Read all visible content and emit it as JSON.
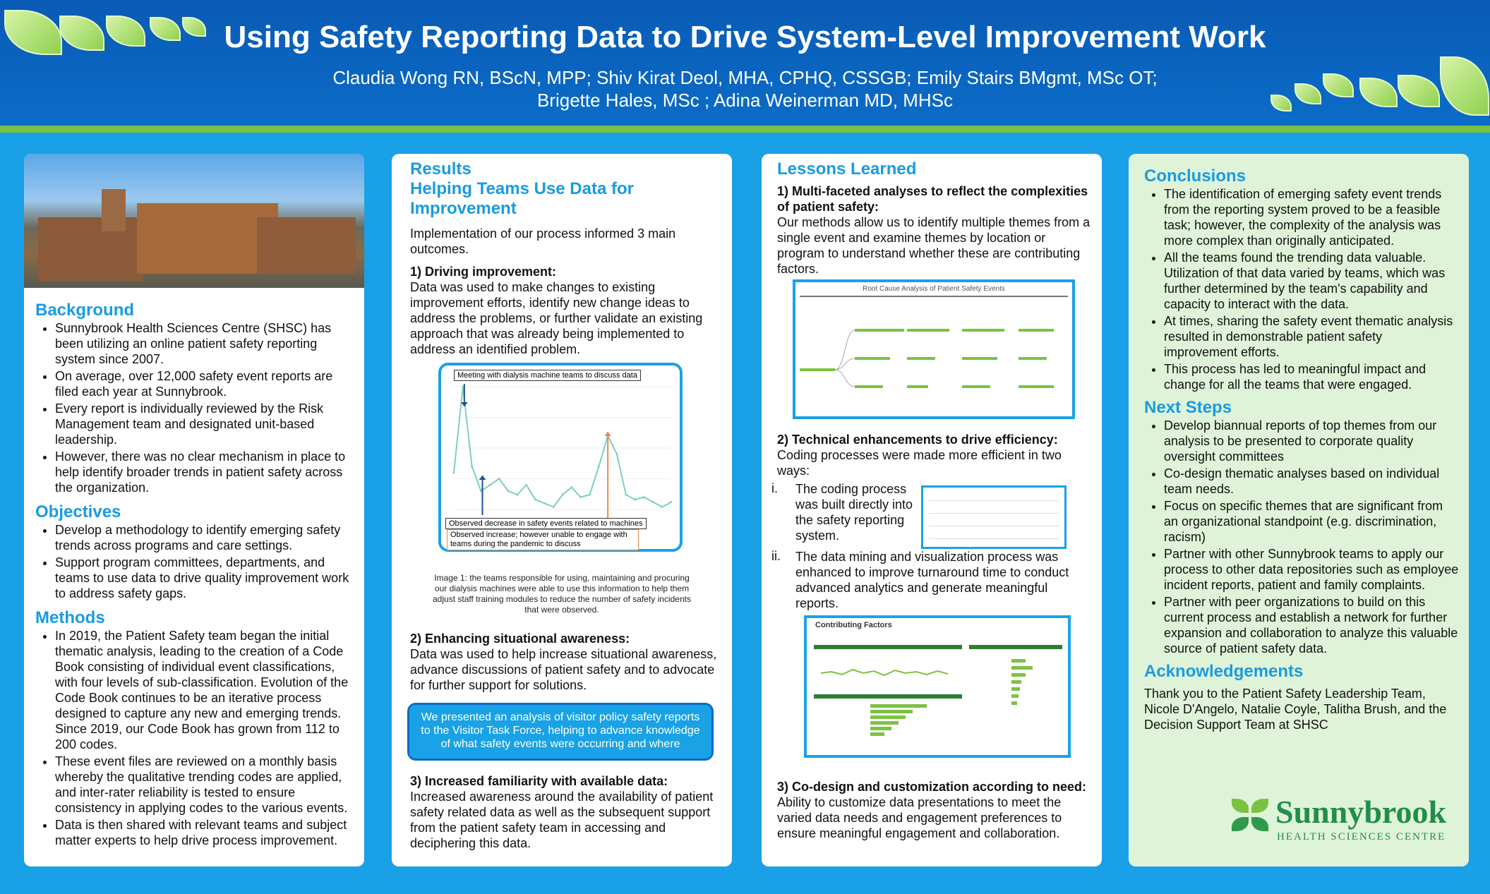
{
  "header": {
    "title": "Using Safety Reporting Data to Drive System-Level Improvement Work",
    "authors_line1": "Claudia Wong RN, BScN, MPP; Shiv Kirat Deol, MHA, CPHQ, CSSGB; Emily Stairs BMgmt, MSc OT;",
    "authors_line2": "Brigette Hales, MSc ; Adina Weinerman MD, MHSc"
  },
  "col1": {
    "background_title": "Background",
    "background": [
      "Sunnybrook Health Sciences Centre (SHSC) has been utilizing an online patient safety reporting system since 2007.",
      "On average, over 12,000 safety event reports are filed each year at Sunnybrook.",
      "Every report is individually reviewed by the Risk Management team and designated unit-based leadership.",
      "However, there was no clear mechanism in place to help identify broader trends in patient safety across the organization."
    ],
    "objectives_title": "Objectives",
    "objectives": [
      "Develop a methodology to identify emerging safety trends across programs and care settings.",
      "Support program committees, departments, and teams to use data to drive quality improvement work to address safety gaps."
    ],
    "methods_title": "Methods",
    "methods": [
      "In 2019, the Patient Safety team began the initial thematic analysis, leading to the creation of a Code Book consisting of individual event classifications, with four levels of sub-classification. Evolution of the Code Book continues to be an iterative process designed to capture any new and emerging trends. Since 2019, our Code Book has grown from 112 to 200 codes.",
      "These event files are reviewed on a monthly basis whereby the qualitative trending codes are applied, and inter-rater reliability is tested to ensure consistency in applying codes to the various events.",
      "Data is then shared with relevant teams and subject matter experts to help drive process improvement."
    ]
  },
  "col2": {
    "results_title": "Results",
    "subtitle": "Helping Teams Use Data for Improvement",
    "intro": "Implementation of our process informed 3 main outcomes.",
    "p1_title": "1) Driving improvement:",
    "p1_text": "Data was used to make changes to existing improvement efforts, identify new change ideas to address the problems, or further validate an existing approach that was already being implemented to address an identified problem.",
    "chart_note_top": "Meeting with dialysis machine teams to discuss data",
    "chart_note_mid": "Observed decrease in safety events related to machines",
    "chart_note_bottom": "Observed increase; however unable to engage with teams during the pandemic to discuss",
    "caption": "Image 1: the teams responsible for using, maintaining and procuring our dialysis machines were able to use this information to help them adjust staff training modules to reduce the number of safety incidents that were observed.",
    "p2_title": "2) Enhancing situational awareness:",
    "p2_text": "Data was used to help increase situational awareness, advance discussions of patient safety and to advocate for further support for solutions.",
    "callout": "We presented an analysis of visitor policy safety reports to the Visitor Task Force, helping to advance knowledge of what safety events were occurring and where",
    "p3_title": "3) Increased familiarity with available data:",
    "p3_text": "Increased awareness around the availability of patient safety related data as well as the subsequent support from the patient safety team in accessing and deciphering this data."
  },
  "col3": {
    "title": "Lessons Learned",
    "l1_title": "1)  Multi-faceted analyses to reflect the complexities of patient safety:",
    "l1_text": "Our methods allow us to identify multiple themes from a single event and examine themes by location or program to understand whether these are contributing factors.",
    "tree_title": "Root Cause Analysis of Patient Safety Events",
    "l2_title": "2) Technical enhancements to drive efficiency:",
    "l2_text": "Coding processes were made more efficient in two ways:",
    "l2_i_num": "i.",
    "l2_i": "The coding process was built directly into the safety reporting system.",
    "l2_ii_num": "ii.",
    "l2_ii": "The data mining and visualization process was enhanced to improve turnaround time to conduct advanced analytics and generate meaningful reports.",
    "dash_title": "Contributing Factors",
    "l3_title": "3) Co-design and customization according to need:",
    "l3_text": "Ability to customize data presentations to meet the varied data needs and engagement preferences to ensure meaningful engagement and collaboration."
  },
  "col4": {
    "conclusions_title": "Conclusions",
    "conclusions": [
      "The identification of emerging safety event trends from the reporting system proved to be a feasible task; however, the complexity of the analysis was more complex than originally anticipated.",
      "All the teams found the trending data valuable. Utilization of that data varied by teams, which was further determined by the team's capability and capacity to interact with the data.",
      "At times, sharing the safety event thematic analysis resulted in demonstrable patient safety improvement efforts.",
      "This process has led to meaningful impact and change for all the teams that were engaged."
    ],
    "next_title": "Next Steps",
    "next": [
      "Develop biannual reports of top themes from our analysis to be presented to corporate quality oversight committees",
      "Co-design thematic analyses based on individual team needs.",
      "Focus on specific themes that are significant from an organizational standpoint (e.g. discrimination, racism)",
      "Partner with other Sunnybrook teams to apply our process to other data repositories such as employee incident reports, patient and family complaints.",
      "Partner with peer organizations to build on this current process and establish a network for further expansion and collaboration to analyze this valuable source of patient safety data."
    ],
    "ack_title": "Acknowledgements",
    "ack_text": "Thank you to the Patient Safety Leadership Team, Nicole D'Angelo, Natalie Coyle, Talitha Brush, and the Decision Support Team at SHSC",
    "logo_name": "Sunnybrook",
    "logo_sub": "HEALTH SCIENCES CENTRE"
  },
  "chart_data": {
    "type": "line",
    "values": [
      0.3,
      1.0,
      0.35,
      0.15,
      0.2,
      0.25,
      0.15,
      0.12,
      0.2,
      0.08,
      0.05,
      0.02,
      0.12,
      0.18,
      0.1,
      0.12,
      0.35,
      0.6,
      0.45,
      0.12,
      0.08,
      0.1,
      0.06,
      0.02,
      0.06
    ],
    "colors": {
      "line": "#7fcfc2",
      "arrow_blue": "#1f4f8f",
      "arrow_orange": "#e98a4c"
    }
  }
}
